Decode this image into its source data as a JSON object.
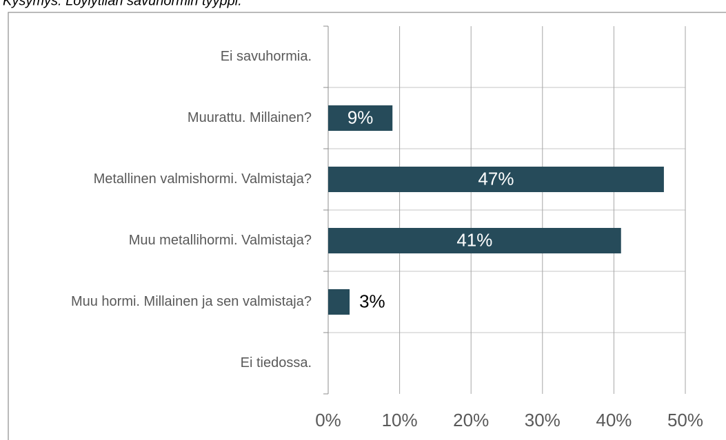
{
  "chart_data": {
    "type": "barh",
    "title": "Kysymys: Löylytilan savuhormin tyyppi.",
    "categories": [
      "Ei savuhormia.",
      "Muurattu. Millainen?",
      "Metallinen valmishormi. Valmistaja?",
      "Muu metallihormi. Valmistaja?",
      "Muu hormi. Millainen ja sen valmistaja?",
      "Ei tiedossa."
    ],
    "values": [
      0,
      9,
      47,
      41,
      3,
      0
    ],
    "value_labels": [
      null,
      "9%",
      "47%",
      "41%",
      "3%",
      null
    ],
    "color": "#264b5a",
    "xlim": [
      0,
      50
    ],
    "xticks": [
      {
        "value": 0,
        "label": "0%"
      },
      {
        "value": 10,
        "label": "10%"
      },
      {
        "value": 20,
        "label": "20%"
      },
      {
        "value": 30,
        "label": "30%"
      },
      {
        "value": 40,
        "label": "40%"
      },
      {
        "value": 50,
        "label": "50%"
      }
    ],
    "grid": true
  }
}
